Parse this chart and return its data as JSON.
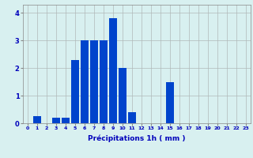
{
  "hours": [
    0,
    1,
    2,
    3,
    4,
    5,
    6,
    7,
    8,
    9,
    10,
    11,
    12,
    13,
    14,
    15,
    16,
    17,
    18,
    19,
    20,
    21,
    22,
    23
  ],
  "values": [
    0,
    0.25,
    0,
    0.2,
    0.2,
    2.3,
    3.0,
    3.0,
    3.0,
    3.8,
    2.0,
    0.4,
    0,
    0,
    0,
    1.5,
    0,
    0,
    0,
    0,
    0,
    0,
    0,
    0
  ],
  "bar_color": "#0044cc",
  "background_color": "#d8f0f0",
  "grid_color": "#b0b8b8",
  "xlabel": "Précipitations 1h ( mm )",
  "xlabel_color": "#0000bb",
  "xlabel_fontsize": 6.5,
  "tick_color": "#0000bb",
  "ylabel_ticks": [
    0,
    1,
    2,
    3,
    4
  ],
  "ylim": [
    0,
    4.3
  ],
  "xlim": [
    -0.5,
    23.5
  ],
  "ytick_fontsize": 6,
  "xtick_fontsize": 4.5
}
